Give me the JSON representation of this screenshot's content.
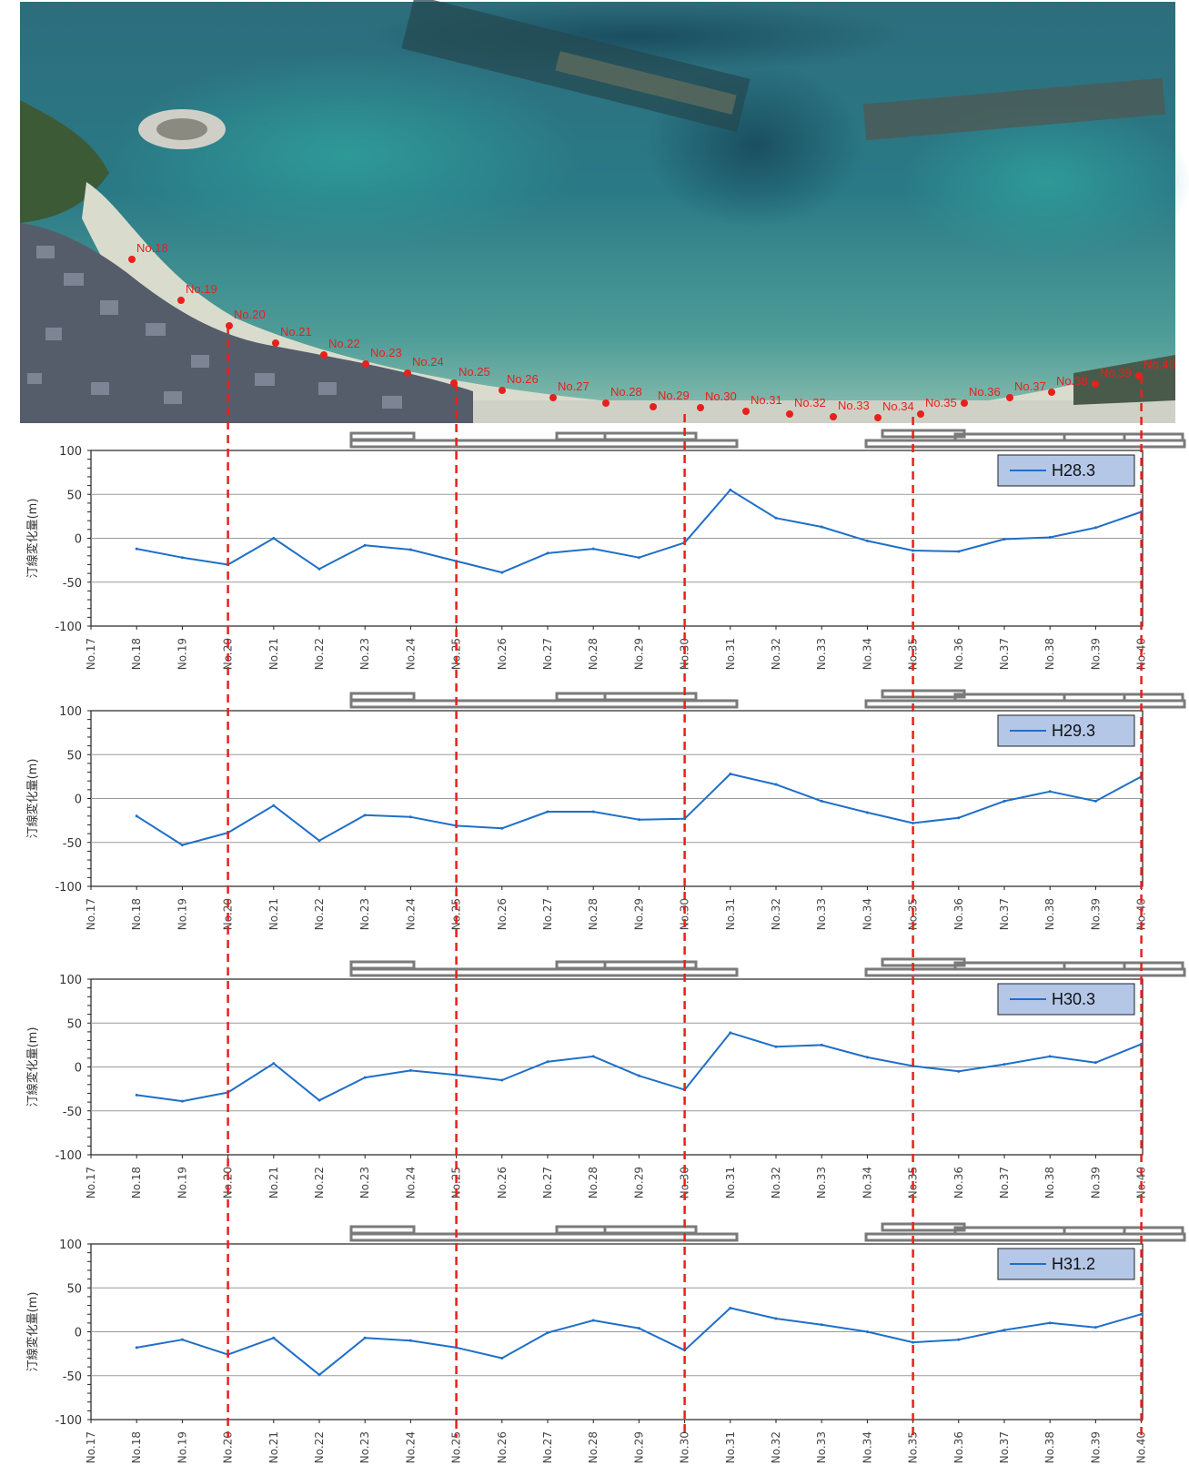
{
  "aerial_map": {
    "point_labels": [
      "No.18",
      "No.19",
      "No.20",
      "No.21",
      "No.22",
      "No.23",
      "No.24",
      "No.25",
      "No.26",
      "No.27",
      "No.28",
      "No.29",
      "No.30",
      "No.31",
      "No.32",
      "No.33",
      "No.34",
      "No.35",
      "No.36",
      "No.37",
      "No.38",
      "No.39",
      "No.40"
    ],
    "colors": {
      "sea_deep": "#1f5a6e",
      "sea_mid": "#3f8f93",
      "sea_shallow": "#7fb8ab",
      "beach": "#dcdccf",
      "land": "#5a6270",
      "points": "#e8201c"
    }
  },
  "colors": {
    "series": "#1f6fc8",
    "guide_lines": "#e8201c",
    "grid": "#9a9a9a",
    "structures": "#7a7a7a",
    "legend_fill": "#b4c7e7"
  },
  "chart_data": [
    {
      "type": "line",
      "ylabel": "汀線変化量(m)",
      "ylim": [
        -100,
        100
      ],
      "yticks": [
        "100",
        "50",
        "0",
        "-50",
        "-100"
      ],
      "categories": [
        "No.17",
        "No.18",
        "No.19",
        "No.20",
        "No.21",
        "No.22",
        "No.23",
        "No.24",
        "No.25",
        "No.26",
        "No.27",
        "No.28",
        "No.29",
        "No.30",
        "No.31",
        "No.32",
        "No.33",
        "No.34",
        "No.35",
        "No.36",
        "No.37",
        "No.38",
        "No.39",
        "No.40"
      ],
      "series": [
        {
          "name": "H28.3",
          "values": [
            null,
            -12,
            -22,
            -30,
            0,
            -35,
            -8,
            -13,
            -26,
            -39,
            -17,
            -12,
            -22,
            -5,
            55,
            23,
            13,
            -3,
            -14,
            -15,
            -1,
            1,
            12,
            30
          ]
        }
      ],
      "legend": "top-right",
      "grid": true
    },
    {
      "type": "line",
      "ylabel": "汀線変化量(m)",
      "ylim": [
        -100,
        100
      ],
      "yticks": [
        "100",
        "50",
        "0",
        "-50",
        "-100"
      ],
      "categories": [
        "No.17",
        "No.18",
        "No.19",
        "No.20",
        "No.21",
        "No.22",
        "No.23",
        "No.24",
        "No.25",
        "No.26",
        "No.27",
        "No.28",
        "No.29",
        "No.30",
        "No.31",
        "No.32",
        "No.33",
        "No.34",
        "No.35",
        "No.36",
        "No.37",
        "No.38",
        "No.39",
        "No.40"
      ],
      "series": [
        {
          "name": "H29.3",
          "values": [
            null,
            -20,
            -53,
            -39,
            -8,
            -48,
            -19,
            -21,
            -31,
            -34,
            -15,
            -15,
            -24,
            -23,
            28,
            16,
            -3,
            -16,
            -28,
            -22,
            -3,
            8,
            -3,
            25
          ]
        }
      ],
      "legend": "top-right",
      "grid": true
    },
    {
      "type": "line",
      "ylabel": "汀線変化量(m)",
      "ylim": [
        -100,
        100
      ],
      "yticks": [
        "100",
        "50",
        "0",
        "-50",
        "-100"
      ],
      "categories": [
        "No.17",
        "No.18",
        "No.19",
        "No.20",
        "No.21",
        "No.22",
        "No.23",
        "No.24",
        "No.25",
        "No.26",
        "No.27",
        "No.28",
        "No.29",
        "No.30",
        "No.31",
        "No.32",
        "No.33",
        "No.34",
        "No.35",
        "No.36",
        "No.37",
        "No.38",
        "No.39",
        "No.40"
      ],
      "series": [
        {
          "name": "H30.3",
          "values": [
            null,
            -32,
            -39,
            -29,
            4,
            -38,
            -12,
            -4,
            -9,
            -15,
            6,
            12,
            -10,
            -26,
            39,
            23,
            25,
            11,
            1,
            -5,
            3,
            12,
            5,
            26
          ]
        }
      ],
      "legend": "top-right",
      "grid": true
    },
    {
      "type": "line",
      "ylabel": "汀線変化量(m)",
      "ylim": [
        -100,
        100
      ],
      "yticks": [
        "100",
        "50",
        "0",
        "-50",
        "-100"
      ],
      "categories": [
        "No.17",
        "No.18",
        "No.19",
        "No.20",
        "No.21",
        "No.22",
        "No.23",
        "No.24",
        "No.25",
        "No.26",
        "No.27",
        "No.28",
        "No.29",
        "No.30",
        "No.31",
        "No.32",
        "No.33",
        "No.34",
        "No.35",
        "No.36",
        "No.37",
        "No.38",
        "No.39",
        "No.40"
      ],
      "series": [
        {
          "name": "H31.2",
          "values": [
            null,
            -18,
            -9,
            -26,
            -7,
            -49,
            -7,
            -10,
            -18,
            -30,
            -1,
            13,
            4,
            -21,
            27,
            15,
            8,
            0,
            -12,
            -9,
            2,
            10,
            5,
            20
          ]
        }
      ],
      "legend": "top-right",
      "grid": true
    }
  ]
}
